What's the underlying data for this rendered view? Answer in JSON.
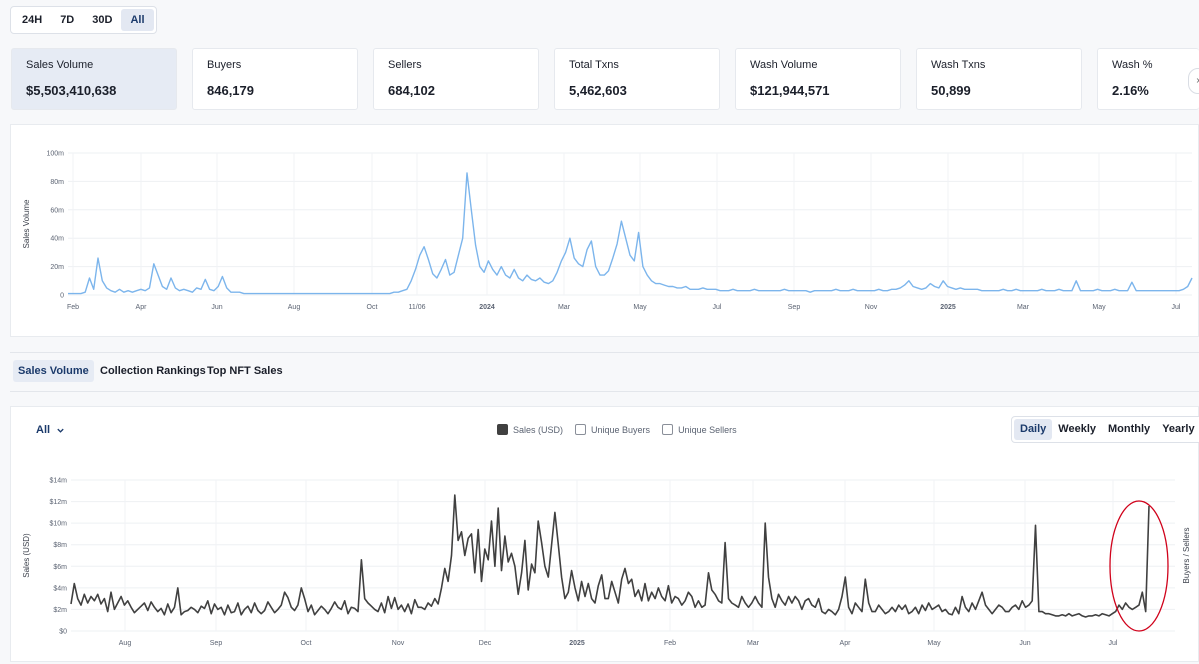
{
  "time_range": {
    "options": [
      "24H",
      "7D",
      "30D",
      "All"
    ],
    "selected": "All"
  },
  "stats": [
    {
      "label": "Sales Volume",
      "value": "$5,503,410,638",
      "active": true
    },
    {
      "label": "Buyers",
      "value": "846,179"
    },
    {
      "label": "Sellers",
      "value": "684,102"
    },
    {
      "label": "Total Txns",
      "value": "5,462,603"
    },
    {
      "label": "Wash Volume",
      "value": "$121,944,571"
    },
    {
      "label": "Wash Txns",
      "value": "50,899"
    },
    {
      "label": "Wash %",
      "value": "2.16%"
    }
  ],
  "tabs": {
    "items": [
      "Sales Volume",
      "Collection Rankings",
      "Top NFT Sales"
    ],
    "selected": "Sales Volume"
  },
  "filter": {
    "selected": "All"
  },
  "legend": [
    {
      "label": "Sales (USD)",
      "checked": true
    },
    {
      "label": "Unique Buyers",
      "checked": false
    },
    {
      "label": "Unique Sellers",
      "checked": false
    }
  ],
  "granularity": {
    "options": [
      "Daily",
      "Weekly",
      "Monthly",
      "Yearly"
    ],
    "selected": "Daily"
  },
  "colors": {
    "overview_line": "#7cb5ec",
    "sales_line": "#404040",
    "annotation": "#d0021b",
    "accent": "#1b3a6b"
  },
  "chart_data": [
    {
      "type": "line",
      "ylabel": "Sales Volume",
      "ylim": [
        0,
        100000000
      ],
      "y_ticks": [
        "0",
        "20m",
        "40m",
        "60m",
        "80m",
        "100m"
      ],
      "x_ticks": [
        "Feb",
        "Apr",
        "Jun",
        "Aug",
        "Oct",
        "11/06",
        "2024",
        "Mar",
        "May",
        "Jul",
        "Sep",
        "Nov",
        "2025",
        "Mar",
        "May",
        "Jul"
      ],
      "series": [
        {
          "values": [
            1,
            1,
            1,
            1,
            2,
            12,
            4,
            26,
            10,
            5,
            3,
            2,
            4,
            2,
            3,
            2,
            3,
            4,
            3,
            5,
            22,
            14,
            6,
            4,
            12,
            5,
            3,
            4,
            3,
            2,
            5,
            4,
            11,
            4,
            3,
            6,
            13,
            5,
            2,
            2,
            2,
            1,
            1,
            1,
            1,
            1,
            1,
            1,
            1,
            1,
            1,
            1,
            1,
            1,
            1,
            1,
            1,
            1,
            1,
            1,
            1,
            1,
            1,
            1,
            1,
            1,
            1,
            1,
            1,
            1,
            1,
            1,
            1,
            1,
            1,
            1,
            2,
            2,
            3,
            4,
            10,
            18,
            28,
            34,
            25,
            15,
            12,
            18,
            25,
            14,
            16,
            28,
            40,
            86,
            60,
            35,
            20,
            16,
            24,
            18,
            14,
            20,
            14,
            12,
            18,
            12,
            10,
            14,
            11,
            10,
            12,
            9,
            8,
            10,
            16,
            24,
            30,
            40,
            26,
            22,
            20,
            32,
            38,
            20,
            14,
            14,
            17,
            26,
            36,
            52,
            40,
            28,
            24,
            44,
            20,
            14,
            10,
            8,
            8,
            7,
            6,
            6,
            5,
            5,
            6,
            4,
            4,
            4,
            5,
            4,
            4,
            4,
            3,
            3,
            3,
            4,
            3,
            3,
            3,
            3,
            4,
            3,
            3,
            3,
            3,
            3,
            3,
            4,
            3,
            3,
            3,
            3,
            3,
            2,
            3,
            3,
            3,
            3,
            3,
            4,
            3,
            3,
            3,
            4,
            3,
            3,
            3,
            3,
            3,
            4,
            3,
            3,
            4,
            4,
            5,
            7,
            10,
            6,
            5,
            4,
            5,
            8,
            6,
            5,
            10,
            6,
            5,
            4,
            5,
            4,
            4,
            4,
            4,
            3,
            3,
            3,
            3,
            3,
            4,
            3,
            3,
            4,
            3,
            3,
            3,
            3,
            3,
            4,
            3,
            3,
            3,
            4,
            3,
            3,
            3,
            10,
            3,
            3,
            3,
            3,
            4,
            3,
            3,
            3,
            4,
            3,
            3,
            3,
            9,
            3,
            3,
            3,
            3,
            3,
            3,
            3,
            3,
            3,
            3,
            3,
            4,
            6,
            12
          ]
        }
      ]
    },
    {
      "type": "line",
      "ylabel": "Sales (USD)",
      "y2label": "Buyers / Sellers",
      "ylim": [
        0,
        14000000
      ],
      "y_ticks": [
        "$0",
        "$2m",
        "$4m",
        "$6m",
        "$8m",
        "$10m",
        "$12m",
        "$14m"
      ],
      "x_ticks": [
        "Aug",
        "Sep",
        "Oct",
        "Nov",
        "Dec",
        "2025",
        "Feb",
        "Mar",
        "Apr",
        "May",
        "Jun",
        "Jul"
      ],
      "series": [
        {
          "name": "Sales (USD)",
          "values": [
            2.5,
            4.4,
            3.0,
            2.4,
            3.4,
            2.6,
            3.2,
            2.8,
            3.4,
            2.5,
            3.0,
            1.8,
            3.6,
            2.0,
            2.6,
            3.2,
            2.4,
            2.8,
            2.2,
            1.7,
            2.0,
            2.3,
            2.6,
            1.9,
            2.7,
            2.2,
            1.8,
            2.1,
            1.5,
            2.5,
            1.7,
            2.2,
            4.0,
            1.5,
            1.8,
            1.9,
            2.2,
            2.0,
            1.7,
            2.3,
            2.1,
            2.8,
            1.6,
            2.5,
            2.0,
            2.2,
            1.5,
            2.4,
            1.7,
            1.8,
            2.6,
            1.5,
            2.0,
            2.3,
            1.7,
            2.6,
            1.9,
            1.6,
            1.9,
            2.7,
            2.2,
            1.7,
            2.0,
            2.4,
            3.6,
            3.1,
            2.2,
            1.9,
            2.4,
            4.0,
            3.0,
            1.8,
            2.4,
            1.5,
            1.9,
            2.3,
            2.0,
            1.6,
            2.1,
            2.7,
            2.2,
            2.0,
            2.8,
            1.6,
            2.2,
            2.1,
            1.8,
            6.6,
            3.0,
            2.6,
            2.3,
            2.0,
            1.8,
            2.6,
            1.7,
            3.2,
            2.1,
            3.1,
            2.0,
            2.4,
            1.8,
            2.5,
            1.6,
            2.9,
            2.2,
            2.2,
            2.0,
            2.6,
            2.3,
            3.0,
            2.5,
            4.0,
            5.8,
            4.6,
            7.0,
            12.6,
            8.4,
            9.2,
            7.0,
            8.6,
            9.0,
            5.4,
            9.4,
            4.6,
            7.6,
            6.6,
            10.2,
            6.0,
            11.4,
            5.6,
            8.8,
            6.4,
            7.2,
            6.0,
            3.4,
            5.4,
            8.4,
            3.8,
            6.2,
            5.4,
            10.2,
            8.2,
            6.0,
            5.0,
            8.0,
            11.0,
            8.0,
            5.0,
            3.0,
            3.6,
            5.6,
            4.0,
            2.8,
            4.6,
            3.2,
            4.4,
            3.0,
            2.6,
            4.2,
            5.2,
            3.0,
            3.0,
            4.6,
            3.6,
            2.6,
            4.8,
            5.8,
            4.4,
            4.8,
            3.2,
            3.8,
            2.8,
            4.4,
            2.8,
            3.6,
            3.0,
            4.0,
            3.2,
            2.8,
            4.2,
            2.6,
            3.2,
            3.0,
            2.4,
            2.8,
            3.6,
            3.2,
            2.2,
            2.8,
            2.2,
            2.4,
            5.4,
            3.8,
            3.4,
            2.8,
            2.6,
            8.2,
            3.0,
            2.6,
            2.4,
            2.2,
            3.2,
            2.6,
            2.2,
            2.6,
            3.2,
            2.6,
            2.2,
            10.0,
            5.0,
            3.0,
            2.2,
            3.4,
            2.8,
            2.4,
            3.2,
            2.6,
            3.2,
            2.8,
            2.0,
            2.8,
            3.0,
            2.4,
            2.2,
            3.0,
            1.8,
            1.6,
            2.0,
            1.8,
            1.5,
            2.0,
            3.2,
            5.0,
            2.2,
            1.6,
            2.6,
            2.2,
            1.8,
            4.8,
            2.6,
            1.8,
            1.8,
            2.4,
            2.0,
            1.6,
            1.8,
            2.2,
            1.8,
            2.4,
            2.0,
            2.4,
            1.6,
            1.8,
            2.2,
            1.6,
            2.4,
            1.9,
            2.6,
            2.0,
            2.2,
            2.4,
            1.8,
            2.0,
            1.6,
            1.5,
            2.2,
            1.6,
            3.2,
            2.2,
            1.8,
            2.6,
            2.0,
            2.8,
            3.6,
            2.4,
            2.0,
            1.6,
            2.0,
            2.4,
            2.2,
            1.8,
            1.8,
            2.2,
            2.4,
            2.0,
            2.8,
            2.2,
            2.4,
            2.8,
            9.8,
            1.8,
            1.8,
            1.6,
            1.6,
            1.5,
            1.4,
            1.4,
            1.5,
            1.4,
            1.6,
            1.4,
            1.5,
            1.6,
            1.4,
            1.3,
            1.4,
            1.4,
            1.5,
            1.4,
            1.6,
            1.5,
            1.4,
            1.6,
            1.8,
            2.4,
            2.0,
            2.6,
            2.2,
            2.0,
            2.2,
            2.4,
            3.6,
            1.8,
            11.6
          ]
        }
      ]
    }
  ]
}
